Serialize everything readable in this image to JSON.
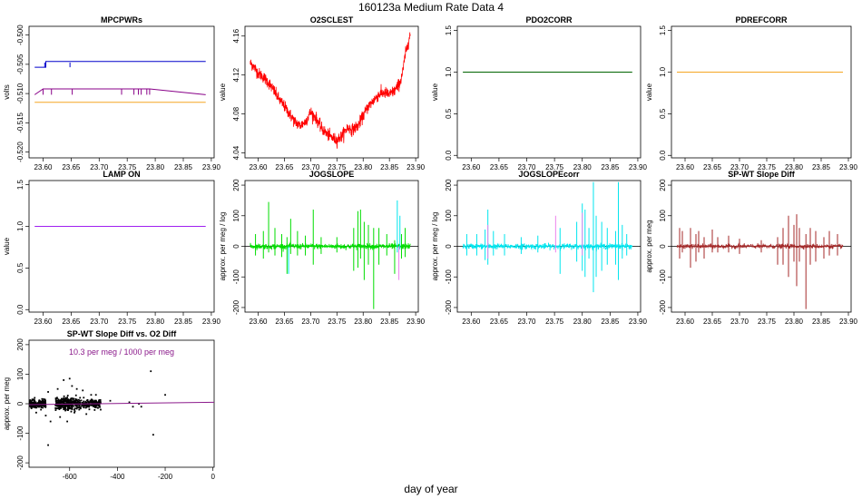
{
  "page": {
    "title": "160123a   Medium Rate Data 4",
    "xlabel": "day of year"
  },
  "chart_data": [
    {
      "type": "line",
      "title": "MPCPWRs",
      "ylabel": "volts",
      "xlim": [
        23.575,
        23.905
      ],
      "ylim": [
        -0.521,
        -0.4985
      ],
      "xticks": [
        23.6,
        23.65,
        23.7,
        23.75,
        23.8,
        23.85,
        23.9
      ],
      "xtick_labels": [
        "23.60",
        "23.65",
        "23.70",
        "23.75",
        "23.80",
        "23.85",
        "23.90"
      ],
      "yticks": [
        -0.52,
        -0.515,
        -0.51,
        -0.505,
        -0.5
      ],
      "ytick_labels": [
        "-0.520",
        "-0.515",
        "-0.510",
        "-0.505",
        "-0.500"
      ],
      "series": [
        {
          "color": "#0000cc",
          "x": [
            23.585,
            23.605,
            23.605,
            23.615,
            23.615,
            23.635,
            23.89
          ],
          "y": [
            -0.5055,
            -0.5055,
            -0.5045,
            -0.5045,
            -0.5045,
            -0.5045,
            -0.5045
          ],
          "spikes": [
            [
              23.603,
              -0.5047,
              -0.5055
            ],
            [
              23.648,
              -0.5047,
              -0.5055
            ]
          ]
        },
        {
          "color": "#880088",
          "x": [
            23.585,
            23.6,
            23.62,
            23.65,
            23.74,
            23.79,
            23.89
          ],
          "y": [
            -0.5102,
            -0.5092,
            -0.5092,
            -0.5092,
            -0.5092,
            -0.5092,
            -0.5102
          ],
          "spikes": [
            [
              23.6,
              -0.5092,
              -0.5102
            ],
            [
              23.615,
              -0.5092,
              -0.5102
            ],
            [
              23.652,
              -0.5092,
              -0.5102
            ],
            [
              23.74,
              -0.5092,
              -0.5102
            ],
            [
              23.762,
              -0.5092,
              -0.5102
            ],
            [
              23.77,
              -0.5092,
              -0.5102
            ],
            [
              23.775,
              -0.5092,
              -0.5102
            ],
            [
              23.785,
              -0.5092,
              -0.5102
            ],
            [
              23.79,
              -0.5092,
              -0.5102
            ]
          ]
        },
        {
          "color": "#f5a623",
          "x": [
            23.585,
            23.89
          ],
          "y": [
            -0.5115,
            -0.5115
          ]
        }
      ]
    },
    {
      "type": "line",
      "title": "O2SCLEST",
      "ylabel": "value",
      "xlim": [
        23.575,
        23.905
      ],
      "ylim": [
        4.035,
        4.17
      ],
      "xticks": [
        23.6,
        23.65,
        23.7,
        23.75,
        23.8,
        23.85,
        23.9
      ],
      "xtick_labels": [
        "23.60",
        "23.65",
        "23.70",
        "23.75",
        "23.80",
        "23.85",
        "23.90"
      ],
      "yticks": [
        4.04,
        4.08,
        4.12,
        4.16
      ],
      "ytick_labels": [
        "4.04",
        "4.08",
        "4.12",
        "4.16"
      ],
      "series": [
        {
          "color": "#ff0000",
          "noise": 0.006,
          "x": [
            23.585,
            23.59,
            23.6,
            23.61,
            23.62,
            23.63,
            23.64,
            23.65,
            23.66,
            23.67,
            23.68,
            23.69,
            23.7,
            23.71,
            23.72,
            23.73,
            23.74,
            23.75,
            23.76,
            23.77,
            23.78,
            23.79,
            23.8,
            23.81,
            23.82,
            23.83,
            23.84,
            23.85,
            23.86,
            23.87,
            23.875,
            23.88,
            23.885,
            23.89
          ],
          "y": [
            4.132,
            4.13,
            4.122,
            4.118,
            4.112,
            4.104,
            4.095,
            4.088,
            4.08,
            4.072,
            4.068,
            4.072,
            4.082,
            4.076,
            4.066,
            4.06,
            4.056,
            4.053,
            4.058,
            4.066,
            4.064,
            4.068,
            4.078,
            4.088,
            4.094,
            4.1,
            4.102,
            4.1,
            4.104,
            4.112,
            4.122,
            4.14,
            4.152,
            4.162
          ]
        }
      ]
    },
    {
      "type": "line",
      "title": "PDO2CORR",
      "ylabel": "value",
      "xlim": [
        23.575,
        23.905
      ],
      "ylim": [
        -0.03,
        1.55
      ],
      "xticks": [
        23.6,
        23.65,
        23.7,
        23.75,
        23.8,
        23.85,
        23.9
      ],
      "xtick_labels": [
        "23.60",
        "23.65",
        "23.70",
        "23.75",
        "23.80",
        "23.85",
        "23.90"
      ],
      "yticks": [
        0.0,
        0.5,
        1.0,
        1.5
      ],
      "ytick_labels": [
        "0.0",
        "0.5",
        "1.0",
        "1.5"
      ],
      "series": [
        {
          "color": "#006400",
          "x": [
            23.585,
            23.89
          ],
          "y": [
            1.0,
            1.0
          ]
        }
      ]
    },
    {
      "type": "line",
      "title": "PDREFCORR",
      "ylabel": "value",
      "xlim": [
        23.575,
        23.905
      ],
      "ylim": [
        -0.03,
        1.55
      ],
      "xticks": [
        23.6,
        23.65,
        23.7,
        23.75,
        23.8,
        23.85,
        23.9
      ],
      "xtick_labels": [
        "23.60",
        "23.65",
        "23.70",
        "23.75",
        "23.80",
        "23.85",
        "23.90"
      ],
      "yticks": [
        0.0,
        0.5,
        1.0,
        1.5
      ],
      "ytick_labels": [
        "0.0",
        "0.5",
        "1.0",
        "1.5"
      ],
      "series": [
        {
          "color": "#f5a623",
          "x": [
            23.585,
            23.89
          ],
          "y": [
            1.0,
            1.0
          ]
        }
      ]
    },
    {
      "type": "line",
      "title": "LAMP ON",
      "ylabel": "value",
      "xlim": [
        23.575,
        23.905
      ],
      "ylim": [
        -0.03,
        1.55
      ],
      "xticks": [
        23.6,
        23.65,
        23.7,
        23.75,
        23.8,
        23.85,
        23.9
      ],
      "xtick_labels": [
        "23.60",
        "23.65",
        "23.70",
        "23.75",
        "23.80",
        "23.85",
        "23.90"
      ],
      "yticks": [
        0.0,
        0.5,
        1.0,
        1.5
      ],
      "ytick_labels": [
        "0.0",
        "0.5",
        "1.0",
        "1.5"
      ],
      "series": [
        {
          "color": "#a020f0",
          "x": [
            23.585,
            23.89
          ],
          "y": [
            1.0,
            1.0
          ]
        }
      ]
    },
    {
      "type": "line",
      "title": "JOGSLOPE",
      "ylabel": "approx. per meg / log",
      "xlim": [
        23.575,
        23.905
      ],
      "ylim": [
        -215,
        215
      ],
      "xticks": [
        23.6,
        23.65,
        23.7,
        23.75,
        23.8,
        23.85,
        23.9
      ],
      "xtick_labels": [
        "23.60",
        "23.65",
        "23.70",
        "23.75",
        "23.80",
        "23.85",
        "23.90"
      ],
      "yticks": [
        -200,
        -100,
        0,
        100,
        200
      ],
      "ytick_labels": [
        "-200",
        "-100",
        "0",
        "100",
        "200"
      ],
      "zero_line": true,
      "series": [
        {
          "color": "#00dd00",
          "noise": 9,
          "x_range": [
            23.585,
            23.89
          ],
          "spikes": [
            [
              23.595,
              40,
              -30
            ],
            [
              23.61,
              50,
              -40
            ],
            [
              23.62,
              145,
              -20
            ],
            [
              23.632,
              60,
              -30
            ],
            [
              23.645,
              40,
              -35
            ],
            [
              23.655,
              -90,
              30
            ],
            [
              23.662,
              90,
              -25
            ],
            [
              23.675,
              50,
              -30
            ],
            [
              23.69,
              35,
              -30
            ],
            [
              23.705,
              120,
              -60
            ],
            [
              23.72,
              30,
              -25
            ],
            [
              23.75,
              30,
              -20
            ],
            [
              23.782,
              60,
              -80
            ],
            [
              23.79,
              115,
              -70
            ],
            [
              23.795,
              120,
              -40
            ],
            [
              23.802,
              80,
              -110
            ],
            [
              23.81,
              70,
              -60
            ],
            [
              23.82,
              60,
              -205
            ],
            [
              23.83,
              60,
              -60
            ],
            [
              23.845,
              40,
              -30
            ],
            [
              23.86,
              20,
              -90
            ],
            [
              23.873,
              40,
              -40
            ],
            [
              23.88,
              60,
              -35
            ]
          ]
        },
        {
          "color": "#00e5ee",
          "spikes": [
            [
              23.658,
              0,
              -90
            ],
            [
              23.865,
              150,
              -20
            ],
            [
              23.87,
              100,
              -10
            ]
          ]
        },
        {
          "color": "#ee82ee",
          "spikes": [
            [
              23.868,
              0,
              -110
            ]
          ]
        }
      ]
    },
    {
      "type": "line",
      "title": "JOGSLOPEcorr",
      "ylabel": "approx. per meg / log",
      "xlim": [
        23.575,
        23.905
      ],
      "ylim": [
        -215,
        215
      ],
      "xticks": [
        23.6,
        23.65,
        23.7,
        23.75,
        23.8,
        23.85,
        23.9
      ],
      "xtick_labels": [
        "23.60",
        "23.65",
        "23.70",
        "23.75",
        "23.80",
        "23.85",
        "23.90"
      ],
      "yticks": [
        -200,
        -100,
        0,
        100,
        200
      ],
      "ytick_labels": [
        "-200",
        "-100",
        "0",
        "100",
        "200"
      ],
      "zero_line": true,
      "series": [
        {
          "color": "#00e5ee",
          "noise": 9,
          "x_range": [
            23.585,
            23.89
          ],
          "spikes": [
            [
              23.592,
              40,
              -30
            ],
            [
              23.61,
              40,
              -30
            ],
            [
              23.625,
              55,
              -45
            ],
            [
              23.63,
              120,
              -60
            ],
            [
              23.64,
              50,
              -30
            ],
            [
              23.66,
              40,
              -30
            ],
            [
              23.69,
              30,
              -25
            ],
            [
              23.72,
              35,
              -20
            ],
            [
              23.76,
              60,
              -90
            ],
            [
              23.79,
              80,
              -50
            ],
            [
              23.8,
              140,
              -80
            ],
            [
              23.805,
              120,
              -100
            ],
            [
              23.812,
              60,
              -40
            ],
            [
              23.82,
              210,
              -150
            ],
            [
              23.825,
              100,
              -100
            ],
            [
              23.835,
              80,
              -80
            ],
            [
              23.845,
              60,
              -60
            ],
            [
              23.86,
              50,
              -60
            ],
            [
              23.865,
              210,
              -110
            ],
            [
              23.872,
              70,
              -40
            ],
            [
              23.88,
              40,
              -30
            ]
          ]
        },
        {
          "color": "#ee82ee",
          "spikes": [
            [
              23.63,
              70,
              -40
            ],
            [
              23.752,
              100,
              -20
            ],
            [
              23.8,
              110,
              -30
            ]
          ]
        }
      ]
    },
    {
      "type": "line",
      "title": "SP-WT Slope Diff",
      "ylabel": "approx. per meg",
      "xlim": [
        23.575,
        23.905
      ],
      "ylim": [
        -215,
        215
      ],
      "xticks": [
        23.6,
        23.65,
        23.7,
        23.75,
        23.8,
        23.85,
        23.9
      ],
      "xtick_labels": [
        "23.60",
        "23.65",
        "23.70",
        "23.75",
        "23.80",
        "23.85",
        "23.90"
      ],
      "yticks": [
        -200,
        -100,
        0,
        100,
        200
      ],
      "ytick_labels": [
        "-200",
        "-100",
        "0",
        "100",
        "200"
      ],
      "zero_line": true,
      "series": [
        {
          "color": "#a52a2a",
          "noise": 7,
          "x_range": [
            23.585,
            23.89
          ],
          "spikes": [
            [
              23.59,
              60,
              -40
            ],
            [
              23.595,
              50,
              -20
            ],
            [
              23.61,
              60,
              -70
            ],
            [
              23.62,
              40,
              -50
            ],
            [
              23.625,
              50,
              -20
            ],
            [
              23.635,
              30,
              -40
            ],
            [
              23.65,
              55,
              -20
            ],
            [
              23.66,
              30,
              -20
            ],
            [
              23.68,
              35,
              -20
            ],
            [
              23.7,
              25,
              -25
            ],
            [
              23.74,
              20,
              -20
            ],
            [
              23.77,
              30,
              -60
            ],
            [
              23.78,
              60,
              -60
            ],
            [
              23.79,
              100,
              -100
            ],
            [
              23.8,
              70,
              -50
            ],
            [
              23.805,
              105,
              -130
            ],
            [
              23.81,
              60,
              -50
            ],
            [
              23.822,
              40,
              -205
            ],
            [
              23.83,
              60,
              -60
            ],
            [
              23.84,
              50,
              -50
            ],
            [
              23.855,
              30,
              -40
            ],
            [
              23.865,
              50,
              -30
            ],
            [
              23.88,
              40,
              -30
            ]
          ]
        }
      ]
    },
    {
      "type": "scatter",
      "title": "SP-WT Slope Diff vs. O2 Diff",
      "ylabel": "approx. per meg",
      "annotation": "10.3 per meg / 1000 per meg",
      "xlim": [
        -770,
        5
      ],
      "ylim": [
        -215,
        215
      ],
      "xticks": [
        -600,
        -400,
        -200,
        0
      ],
      "xtick_labels": [
        "-600",
        "-400",
        "-200",
        "0"
      ],
      "yticks": [
        -200,
        -100,
        0,
        100,
        200
      ],
      "ytick_labels": [
        "-200",
        "-100",
        "0",
        "100",
        "200"
      ],
      "fit_line": {
        "color": "#8b1a8b",
        "x": [
          -770,
          5
        ],
        "y": [
          -3,
          5
        ]
      },
      "point_color": "#000000",
      "clusters": [
        {
          "x_range": [
            -770,
            -700
          ],
          "y_sd": 7,
          "n": 180
        },
        {
          "x_range": [
            -660,
            -560
          ],
          "y_sd": 10,
          "n": 260
        },
        {
          "x_range": [
            -560,
            -470
          ],
          "y_sd": 8,
          "n": 160
        }
      ],
      "outliers": [
        [
          -740,
          -30
        ],
        [
          -720,
          -20
        ],
        [
          -700,
          -40
        ],
        [
          -690,
          40
        ],
        [
          -680,
          -60
        ],
        [
          -650,
          50
        ],
        [
          -640,
          -45
        ],
        [
          -625,
          80
        ],
        [
          -610,
          -60
        ],
        [
          -600,
          85
        ],
        [
          -590,
          60
        ],
        [
          -580,
          -30
        ],
        [
          -570,
          50
        ],
        [
          -560,
          -20
        ],
        [
          -545,
          45
        ],
        [
          -530,
          -35
        ],
        [
          -510,
          30
        ],
        [
          -490,
          30
        ],
        [
          -470,
          -20
        ],
        [
          -430,
          10
        ],
        [
          -350,
          5
        ],
        [
          -335,
          -10
        ],
        [
          -310,
          0
        ],
        [
          -300,
          -10
        ],
        [
          -260,
          110
        ],
        [
          -250,
          -105
        ],
        [
          -200,
          30
        ],
        [
          -690,
          -140
        ]
      ]
    }
  ]
}
